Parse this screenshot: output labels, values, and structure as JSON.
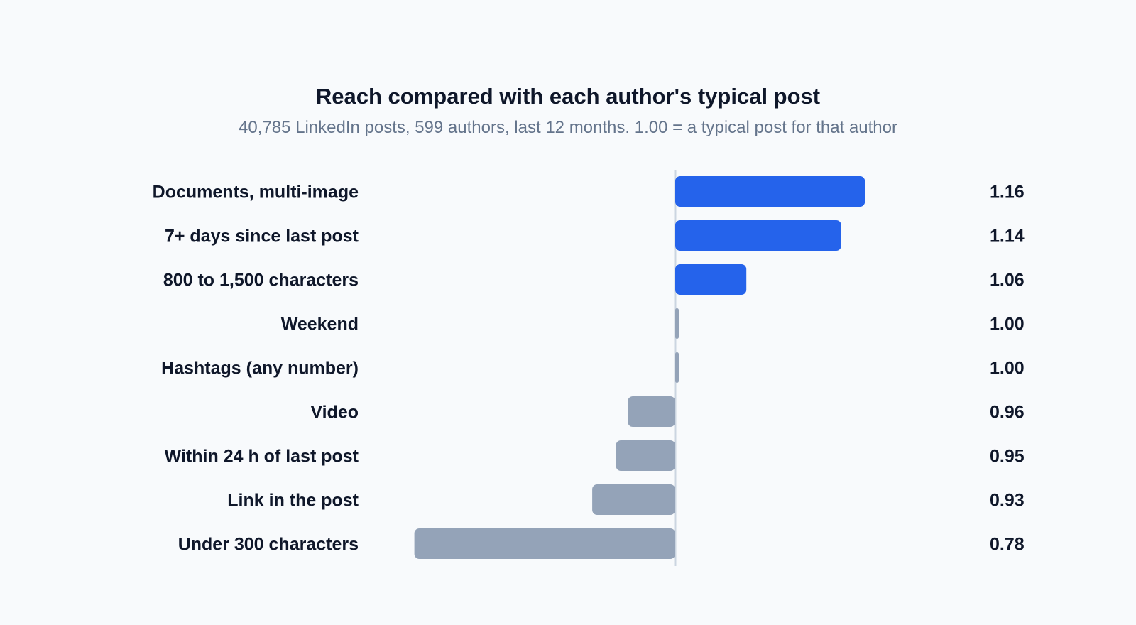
{
  "header": {
    "title": "Reach compared with each author's typical post",
    "subtitle": "40,785 LinkedIn posts, 599 authors, last 12 months. 1.00 = a typical post for that author"
  },
  "colors": {
    "positive": "#2563eb",
    "neutral": "#94a3b8",
    "baseline": "#cbd5e1"
  },
  "chart_data": {
    "type": "bar",
    "orientation": "horizontal",
    "title": "Reach compared with each author's typical post",
    "subtitle": "40,785 LinkedIn posts, 599 authors, last 12 months. 1.00 = a typical post for that author",
    "baseline": 1.0,
    "categories": [
      "Documents, multi-image",
      "7+ days since last post",
      "800 to 1,500 characters",
      "Weekend",
      "Hashtags (any number)",
      "Video",
      "Within 24 h of last post",
      "Link in the post",
      "Under 300 characters"
    ],
    "values": [
      1.16,
      1.14,
      1.06,
      1.0,
      1.0,
      0.96,
      0.95,
      0.93,
      0.78
    ],
    "value_labels": [
      "1.16",
      "1.14",
      "1.06",
      "1.00",
      "1.00",
      "0.96",
      "0.95",
      "0.93",
      "0.78"
    ],
    "highlighted": [
      true,
      true,
      true,
      false,
      false,
      false,
      false,
      false,
      false
    ],
    "xlim": [
      0.78,
      1.2
    ],
    "grid": false,
    "legend": "none"
  }
}
